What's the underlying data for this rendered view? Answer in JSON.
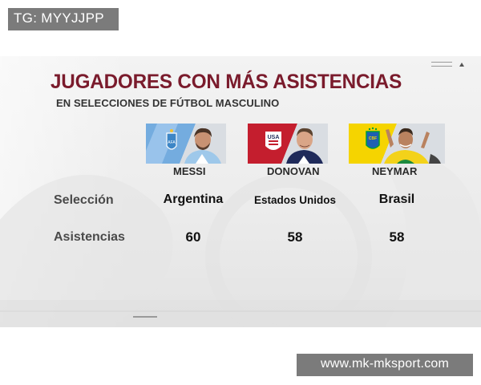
{
  "watermarks": {
    "top": "TG: MYYJJPP",
    "bottom": "www.mk-mksport.com"
  },
  "graphic": {
    "title": "JUGADORES CON MÁS ASISTENCIAS",
    "subtitle": "EN SELECCIONES DE FÚTBOL MASCULINO",
    "players": [
      {
        "name": "MESSI",
        "team": "Argentina",
        "assists": "60",
        "flag_colors": [
          "#74acdf",
          "#ffffff"
        ]
      },
      {
        "name": "DONOVAN",
        "team": "Estados Unidos",
        "assists": "58",
        "flag_colors": [
          "#b22234",
          "#ffffff",
          "#3c3b6e"
        ]
      },
      {
        "name": "NEYMAR",
        "team": "Brasil",
        "assists": "58",
        "flag_colors": [
          "#f5d400",
          "#009c3b",
          "#002776"
        ]
      }
    ],
    "row_labels": {
      "team": "Selección",
      "assists": "Asistencias"
    },
    "accent_color": "#7a1b2c"
  }
}
